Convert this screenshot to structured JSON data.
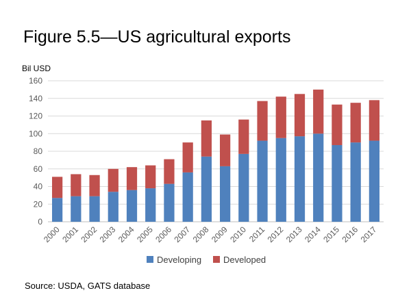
{
  "title": "Figure 5.5—US agricultural exports",
  "source": "Source: USDA, GATS database",
  "chart_data": {
    "type": "bar",
    "stacked": true,
    "ylabel": "Bil USD",
    "xlabel": "",
    "ylim": [
      0,
      160
    ],
    "yticks": [
      0,
      20,
      40,
      60,
      80,
      100,
      120,
      140,
      160
    ],
    "grid": true,
    "legend": "bottom",
    "categories": [
      "2000",
      "2001",
      "2002",
      "2003",
      "2004",
      "2005",
      "2006",
      "2007",
      "2008",
      "2009",
      "2010",
      "2011",
      "2012",
      "2013",
      "2014",
      "2015",
      "2016",
      "2017"
    ],
    "series": [
      {
        "name": "Developing",
        "color": "#4f81bd",
        "values": [
          27,
          29,
          29,
          34,
          36,
          38,
          43,
          56,
          74,
          63,
          77,
          92,
          95,
          97,
          100,
          87,
          90,
          92
        ]
      },
      {
        "name": "Developed",
        "color": "#c0504d",
        "values": [
          24,
          25,
          24,
          26,
          26,
          26,
          28,
          34,
          41,
          36,
          39,
          45,
          47,
          48,
          50,
          46,
          45,
          46
        ]
      }
    ]
  }
}
